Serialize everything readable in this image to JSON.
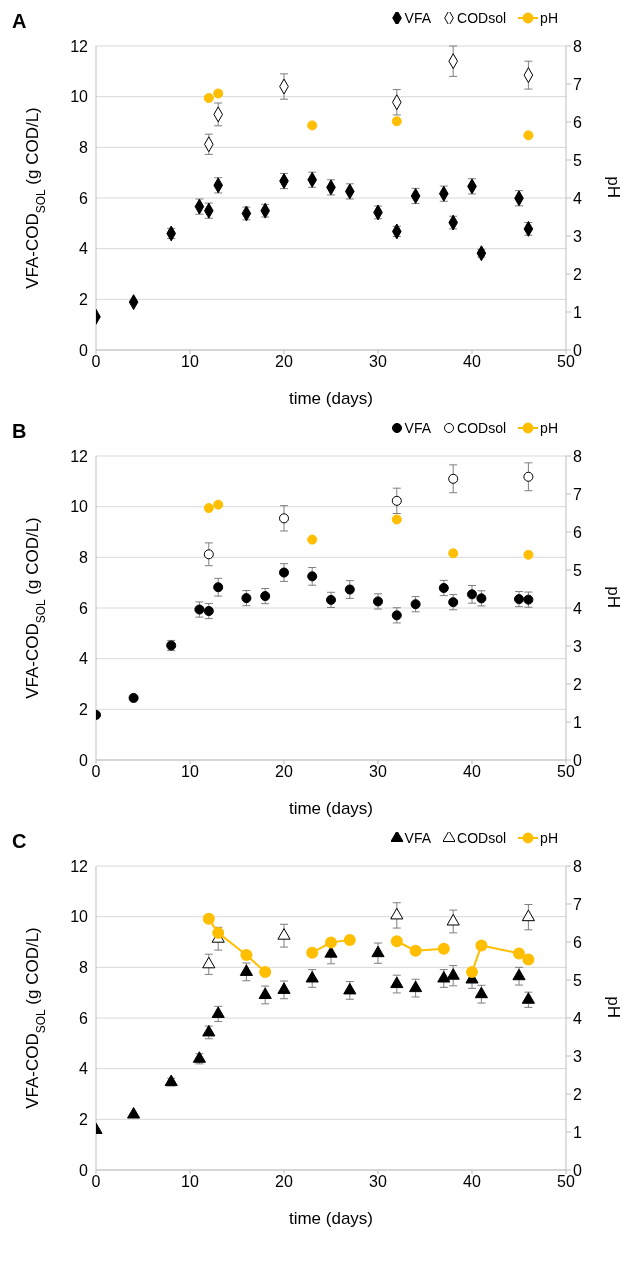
{
  "chart_data": [
    {
      "type": "scatter",
      "title": "A",
      "xlabel": "time (days)",
      "ylabel": "VFA-COD$_{SOL}$ (g COD/L)",
      "y2label": "pH",
      "xlim": [
        0,
        50
      ],
      "xticks": [
        0,
        10,
        20,
        30,
        40,
        50
      ],
      "ylim": [
        0,
        12
      ],
      "yticks": [
        0,
        2,
        4,
        6,
        8,
        10,
        12
      ],
      "y2lim": [
        0,
        8
      ],
      "y2ticks": [
        0,
        1,
        2,
        3,
        4,
        5,
        6,
        7,
        8
      ],
      "grid": "y",
      "legend": "top right",
      "series": [
        {
          "name": "VFA",
          "color": "#000000",
          "marker": "diamond",
          "x": [
            0,
            4,
            8,
            11,
            12,
            13,
            16,
            18,
            20,
            23,
            25,
            27,
            30,
            32,
            34,
            37,
            38,
            40,
            41,
            45,
            46
          ],
          "values": [
            1.31,
            1.89,
            4.6,
            5.66,
            5.5,
            6.5,
            5.39,
            5.5,
            6.67,
            6.72,
            6.42,
            6.26,
            5.43,
            4.68,
            6.08,
            6.17,
            5.03,
            6.46,
            3.82,
            5.99,
            4.78
          ],
          "errors": [
            null,
            null,
            0.2,
            0.3,
            0.3,
            0.3,
            0.25,
            0.25,
            0.3,
            0.3,
            0.3,
            0.3,
            0.25,
            0.2,
            0.3,
            0.3,
            0.25,
            0.3,
            0.15,
            0.3,
            0.25
          ]
        },
        {
          "name": "CODsol",
          "color": "#000000",
          "marker": "diamond",
          "x": [
            12,
            13,
            20,
            32,
            38,
            46
          ],
          "values": [
            8.12,
            9.3,
            10.4,
            9.78,
            11.4,
            10.85
          ],
          "errors": [
            0.4,
            0.45,
            0.5,
            0.5,
            0.6,
            0.55
          ]
        },
        {
          "name": "pH",
          "color": "#ffbf00",
          "marker": "circle",
          "axis": "y2",
          "x": [
            12,
            13,
            23,
            32,
            46
          ],
          "values": [
            6.63,
            6.75,
            5.91,
            6.02,
            5.65
          ]
        }
      ]
    },
    {
      "type": "scatter",
      "title": "B",
      "xlabel": "time (days)",
      "ylabel": "VFA-COD$_{SOL}$ (g COD/L)",
      "y2label": "pH",
      "xlim": [
        0,
        50
      ],
      "xticks": [
        0,
        10,
        20,
        30,
        40,
        50
      ],
      "ylim": [
        0,
        12
      ],
      "yticks": [
        0,
        2,
        4,
        6,
        8,
        10,
        12
      ],
      "y2lim": [
        0,
        8
      ],
      "y2ticks": [
        0,
        1,
        2,
        3,
        4,
        5,
        6,
        7,
        8
      ],
      "grid": "y",
      "legend": "top right",
      "series": [
        {
          "name": "VFA",
          "color": "#000000",
          "marker": "circle",
          "x": [
            0,
            4,
            8,
            11,
            12,
            13,
            16,
            18,
            20,
            23,
            25,
            27,
            30,
            32,
            34,
            37,
            38,
            40,
            41,
            45,
            46
          ],
          "values": [
            1.78,
            2.45,
            4.52,
            5.94,
            5.88,
            6.82,
            6.39,
            6.47,
            7.4,
            7.25,
            6.32,
            6.73,
            6.26,
            5.71,
            6.15,
            6.79,
            6.23,
            6.54,
            6.38,
            6.35,
            6.33
          ],
          "errors": [
            null,
            null,
            0.2,
            0.3,
            0.3,
            0.35,
            0.3,
            0.3,
            0.35,
            0.35,
            0.3,
            0.35,
            0.3,
            0.3,
            0.3,
            0.3,
            0.3,
            0.35,
            0.3,
            0.3,
            0.3
          ]
        },
        {
          "name": "CODsol",
          "color": "#000000",
          "marker": "circle",
          "x": [
            12,
            20,
            32,
            38,
            46
          ],
          "values": [
            8.12,
            9.54,
            10.23,
            11.1,
            11.18
          ],
          "errors": [
            0.45,
            0.5,
            0.5,
            0.55,
            0.55
          ]
        },
        {
          "name": "pH",
          "color": "#ffbf00",
          "marker": "circle",
          "axis": "y2",
          "x": [
            12,
            13,
            23,
            32,
            38,
            46
          ],
          "values": [
            6.63,
            6.72,
            5.8,
            6.33,
            5.44,
            5.4
          ]
        }
      ]
    },
    {
      "type": "scatter",
      "title": "C",
      "xlabel": "time (days)",
      "ylabel": "VFA-COD$_{SOL}$ (g COD/L)",
      "y2label": "pH",
      "xlim": [
        0,
        50
      ],
      "xticks": [
        0,
        10,
        20,
        30,
        40,
        50
      ],
      "ylim": [
        0,
        12
      ],
      "yticks": [
        0,
        2,
        4,
        6,
        8,
        10,
        12
      ],
      "y2lim": [
        0,
        8
      ],
      "y2ticks": [
        0,
        1,
        2,
        3,
        4,
        5,
        6,
        7,
        8
      ],
      "grid": "y",
      "legend": "top right",
      "series": [
        {
          "name": "VFA",
          "color": "#000000",
          "marker": "triangle",
          "x": [
            0,
            4,
            8,
            11,
            12,
            13,
            16,
            18,
            20,
            23,
            25,
            27,
            30,
            32,
            34,
            37,
            38,
            40,
            41,
            45,
            46
          ],
          "values": [
            1.58,
            2.19,
            3.47,
            4.39,
            5.43,
            6.16,
            7.82,
            6.91,
            7.11,
            7.56,
            8.54,
            7.09,
            8.56,
            7.34,
            7.18,
            7.56,
            7.67,
            7.52,
            6.94,
            7.65,
            6.72
          ],
          "errors": [
            null,
            null,
            0.15,
            0.2,
            0.25,
            0.3,
            0.35,
            0.35,
            0.35,
            0.35,
            0.4,
            0.35,
            0.4,
            0.35,
            0.35,
            0.35,
            0.4,
            0.35,
            0.35,
            0.35,
            0.3
          ]
        },
        {
          "name": "CODsol",
          "color": "#000000",
          "marker": "triangle",
          "x": [
            12,
            13,
            20,
            32,
            38,
            46
          ],
          "values": [
            8.12,
            9.13,
            9.25,
            10.05,
            9.81,
            9.98
          ],
          "errors": [
            0.4,
            0.45,
            0.45,
            0.5,
            0.45,
            0.5
          ]
        },
        {
          "name": "pH",
          "type": "line",
          "color": "#ffbf00",
          "marker": "circle",
          "axis": "y2",
          "x": [
            12,
            13,
            16,
            18,
            20,
            23,
            25,
            27,
            30,
            32,
            34,
            37,
            38,
            40,
            41,
            45,
            46
          ],
          "values": [
            6.61,
            6.24,
            5.66,
            5.21,
            null,
            5.72,
            5.99,
            6.05,
            null,
            6.02,
            5.77,
            5.82,
            null,
            5.21,
            5.91,
            5.7,
            5.54
          ]
        }
      ]
    }
  ]
}
